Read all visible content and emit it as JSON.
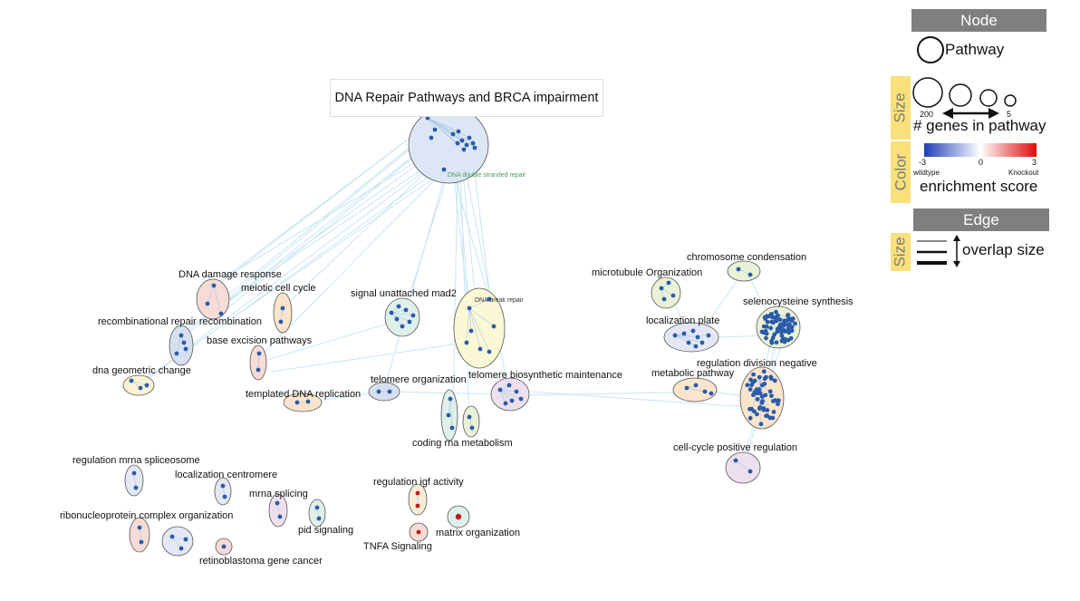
{
  "title": "DNA Repair Pathways and BRCA impairment",
  "pathway_labels": {
    "dna_double_stranded_repair": "DNA double stranded repair",
    "dna_damage_response": "DNA damage response",
    "meiotic_cell_cycle": "meiotic cell cycle",
    "recombinational_repair_recombination": "recombinational repair recombination",
    "base_excision_pathways": "base excision pathways",
    "dna_geometric_change": "dna geometric change",
    "templated_dna_replication": "templated DNA replication",
    "signal_unattached_mad2": "signal unattached mad2",
    "dna_break_repair": "DNA break repair",
    "telomere_organization": "telomere organization",
    "telomere_biosynthetic_maintenance": "telomere biosynthetic maintenance",
    "coding_rna_metabolism": "coding rna metabolism",
    "chromosome_condensation": "chromosome condensation",
    "microtubule_organization": "microtubule Organization",
    "selenocysteine_synthesis": "selenocysteine synthesis",
    "localization_plate": "localization plate",
    "regulation_division_negative": "regulation division negative",
    "metabolic_pathway": "metabolic pathway",
    "cell_cycle_positive_regulation": "cell-cycle positive regulation",
    "regulation_mrna_spliceosome": "regulation mrna spliceosome",
    "localization_centromere": "localization centromere",
    "mrna_splicing": "mrna splicing",
    "pid_signaling": "pid signaling",
    "ribonucleoprotein_complex_organization": "ribonucleoprotein complex organization",
    "retinoblastoma_gene_cancer": "retinoblastoma gene cancer",
    "regulation_igf_activity": "regulation igf activity",
    "matrix_organization": "matrix organization",
    "tnfa_signaling": "TNFA Signaling"
  },
  "legend": {
    "node_header": "Node",
    "pathway_label": "Pathway",
    "size_tab": "Size",
    "size_max": "200",
    "size_min": "5",
    "genes_label": "# genes in pathway",
    "color_tab": "Color",
    "color_min": "-3",
    "color_mid": "0",
    "color_max": "3",
    "wildtype_label": "wildtype",
    "knockout_label": "Knockout",
    "enrichment_label": "enrichment score",
    "edge_header": "Edge",
    "edge_size_tab": "Size",
    "overlap_label": "overlap size"
  },
  "colors": {
    "edge": "#bcdff0",
    "node_dot": "#2a5ba8",
    "red_dot": "#c01818",
    "legend_header": "#7f7f7f",
    "legend_tab": "#f9e07a",
    "green_text": "#4f9a5a",
    "scale_low": "#1f3fb8",
    "scale_high": "#e00a0a"
  }
}
